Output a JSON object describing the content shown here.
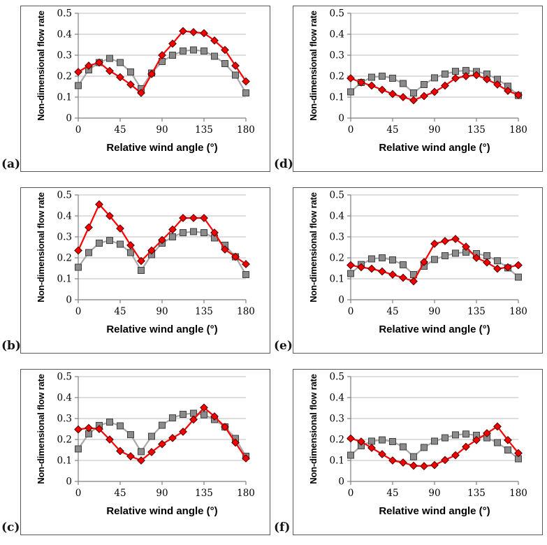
{
  "figure": {
    "x_axis_label": "Relative wind angle (°)",
    "y_axis_label": "Non-dimensional flow rate",
    "x_tick_labels": [
      "0",
      "45",
      "90",
      "135",
      "180"
    ],
    "y_tick_labels": [
      "0",
      "0.1",
      "0.2",
      "0.3",
      "0.4",
      "0.5"
    ]
  },
  "style": {
    "grid_color": "#BDBDBD",
    "axis_color": "#7F7F7F",
    "box_border_color": "#595959",
    "series": {
      "gray-square": {
        "line": "#A8A8A8",
        "fill": "#8B8B8B",
        "stroke": "#3F3F3F",
        "marker": "square"
      },
      "red-diamond": {
        "line": "#FF0000",
        "fill": "#F40000",
        "stroke": "#4D0000",
        "marker": "diamond"
      }
    }
  },
  "chart_data": [
    {
      "panel_label": "(a)",
      "type": "line",
      "title": "",
      "xlabel": "Relative wind angle (°)",
      "ylabel": "Non-dimensional flow rate",
      "xlim": [
        0,
        180
      ],
      "ylim": [
        0,
        0.5
      ],
      "x_ticks": [
        0,
        45,
        90,
        135,
        180
      ],
      "y_ticks": [
        0,
        0.1,
        0.2,
        0.3,
        0.4,
        0.5
      ],
      "x_tick_labels": [
        "0",
        "45",
        "90",
        "135",
        "180"
      ],
      "y_tick_labels": [
        "0",
        "0.1",
        "0.2",
        "0.3",
        "0.4",
        "0.5"
      ],
      "grid": "horizontal",
      "legend": "none",
      "x": [
        0,
        11.25,
        22.5,
        33.75,
        45,
        56.25,
        67.5,
        78.75,
        90,
        101.25,
        112.5,
        123.75,
        135,
        146.25,
        157.5,
        168.75,
        180
      ],
      "series": [
        {
          "name": "gray-square",
          "values": [
            0.155,
            0.23,
            0.265,
            0.285,
            0.265,
            0.22,
            0.14,
            0.215,
            0.27,
            0.3,
            0.32,
            0.325,
            0.32,
            0.295,
            0.26,
            0.205,
            0.12
          ]
        },
        {
          "name": "red-diamond",
          "values": [
            0.22,
            0.25,
            0.265,
            0.225,
            0.195,
            0.16,
            0.12,
            0.21,
            0.3,
            0.355,
            0.415,
            0.41,
            0.405,
            0.37,
            0.325,
            0.25,
            0.175
          ]
        }
      ]
    },
    {
      "panel_label": "(b)",
      "type": "line",
      "title": "",
      "xlabel": "Relative wind angle (°)",
      "ylabel": "Non-dimensional flow rate",
      "xlim": [
        0,
        180
      ],
      "ylim": [
        0,
        0.5
      ],
      "x_ticks": [
        0,
        45,
        90,
        135,
        180
      ],
      "y_ticks": [
        0,
        0.1,
        0.2,
        0.3,
        0.4,
        0.5
      ],
      "x_tick_labels": [
        "0",
        "45",
        "90",
        "135",
        "180"
      ],
      "y_tick_labels": [
        "0",
        "0.1",
        "0.2",
        "0.3",
        "0.4",
        "0.5"
      ],
      "grid": "horizontal",
      "legend": "none",
      "x": [
        0,
        11.25,
        22.5,
        33.75,
        45,
        56.25,
        67.5,
        78.75,
        90,
        101.25,
        112.5,
        123.75,
        135,
        146.25,
        157.5,
        168.75,
        180
      ],
      "series": [
        {
          "name": "gray-square",
          "values": [
            0.155,
            0.225,
            0.27,
            0.283,
            0.265,
            0.225,
            0.14,
            0.215,
            0.27,
            0.3,
            0.32,
            0.325,
            0.32,
            0.295,
            0.26,
            0.205,
            0.12
          ]
        },
        {
          "name": "red-diamond",
          "values": [
            0.235,
            0.345,
            0.455,
            0.4,
            0.34,
            0.26,
            0.185,
            0.235,
            0.285,
            0.335,
            0.39,
            0.39,
            0.39,
            0.32,
            0.24,
            0.205,
            0.17
          ]
        }
      ]
    },
    {
      "panel_label": "(c)",
      "type": "line",
      "title": "",
      "xlabel": "Relative wind angle (°)",
      "ylabel": "Non-dimensional flow rate",
      "xlim": [
        0,
        180
      ],
      "ylim": [
        0,
        0.5
      ],
      "x_ticks": [
        0,
        45,
        90,
        135,
        180
      ],
      "y_ticks": [
        0,
        0.1,
        0.2,
        0.3,
        0.4,
        0.5
      ],
      "x_tick_labels": [
        "0",
        "45",
        "90",
        "135",
        "180"
      ],
      "y_tick_labels": [
        "0",
        "0.1",
        "0.2",
        "0.3",
        "0.4",
        "0.5"
      ],
      "grid": "horizontal",
      "legend": "none",
      "x": [
        0,
        11.25,
        22.5,
        33.75,
        45,
        56.25,
        67.5,
        78.75,
        90,
        101.25,
        112.5,
        123.75,
        135,
        146.25,
        157.5,
        168.75,
        180
      ],
      "series": [
        {
          "name": "gray-square",
          "values": [
            0.155,
            0.227,
            0.267,
            0.283,
            0.265,
            0.223,
            0.142,
            0.215,
            0.268,
            0.303,
            0.32,
            0.325,
            0.318,
            0.295,
            0.26,
            0.205,
            0.12
          ]
        },
        {
          "name": "red-diamond",
          "values": [
            0.248,
            0.255,
            0.25,
            0.2,
            0.145,
            0.12,
            0.1,
            0.14,
            0.178,
            0.207,
            0.237,
            0.295,
            0.352,
            0.31,
            0.26,
            0.185,
            0.11
          ]
        }
      ]
    },
    {
      "panel_label": "(d)",
      "type": "line",
      "title": "",
      "xlabel": "Relative wind angle (°)",
      "ylabel": "Non-dimensional flow rate",
      "xlim": [
        0,
        180
      ],
      "ylim": [
        0,
        0.5
      ],
      "x_ticks": [
        0,
        45,
        90,
        135,
        180
      ],
      "y_ticks": [
        0,
        0.1,
        0.2,
        0.3,
        0.4,
        0.5
      ],
      "x_tick_labels": [
        "0",
        "45",
        "90",
        "135",
        "180"
      ],
      "y_tick_labels": [
        "0",
        "0.1",
        "0.2",
        "0.3",
        "0.4",
        "0.5"
      ],
      "grid": "horizontal",
      "legend": "none",
      "x": [
        0,
        11.25,
        22.5,
        33.75,
        45,
        56.25,
        67.5,
        78.75,
        90,
        101.25,
        112.5,
        123.75,
        135,
        146.25,
        157.5,
        168.75,
        180
      ],
      "series": [
        {
          "name": "gray-square",
          "values": [
            0.125,
            0.17,
            0.195,
            0.2,
            0.19,
            0.165,
            0.12,
            0.16,
            0.192,
            0.21,
            0.223,
            0.227,
            0.222,
            0.21,
            0.185,
            0.152,
            0.108
          ]
        },
        {
          "name": "red-diamond",
          "values": [
            0.19,
            0.17,
            0.155,
            0.135,
            0.115,
            0.1,
            0.085,
            0.105,
            0.125,
            0.155,
            0.19,
            0.2,
            0.205,
            0.185,
            0.16,
            0.13,
            0.11
          ]
        }
      ]
    },
    {
      "panel_label": "(e)",
      "type": "line",
      "title": "",
      "xlabel": "Relative wind angle (°)",
      "ylabel": "Non-dimensional flow rate",
      "xlim": [
        0,
        180
      ],
      "ylim": [
        0,
        0.5
      ],
      "x_ticks": [
        0,
        45,
        90,
        135,
        180
      ],
      "y_ticks": [
        0,
        0.1,
        0.2,
        0.3,
        0.4,
        0.5
      ],
      "x_tick_labels": [
        "0",
        "45",
        "90",
        "135",
        "180"
      ],
      "y_tick_labels": [
        "0",
        "0.1",
        "0.2",
        "0.3",
        "0.4",
        "0.5"
      ],
      "grid": "horizontal",
      "legend": "none",
      "x": [
        0,
        11.25,
        22.5,
        33.75,
        45,
        56.25,
        67.5,
        78.75,
        90,
        101.25,
        112.5,
        123.75,
        135,
        146.25,
        157.5,
        168.75,
        180
      ],
      "series": [
        {
          "name": "gray-square",
          "values": [
            0.125,
            0.168,
            0.195,
            0.2,
            0.19,
            0.167,
            0.12,
            0.16,
            0.192,
            0.21,
            0.222,
            0.227,
            0.22,
            0.21,
            0.186,
            0.152,
            0.108
          ]
        },
        {
          "name": "red-diamond",
          "values": [
            0.165,
            0.155,
            0.148,
            0.135,
            0.12,
            0.105,
            0.088,
            0.18,
            0.267,
            0.28,
            0.29,
            0.253,
            0.2,
            0.178,
            0.148,
            0.155,
            0.165
          ]
        }
      ]
    },
    {
      "panel_label": "(f)",
      "type": "line",
      "title": "",
      "xlabel": "Relative wind angle (°)",
      "ylabel": "Non-dimensional flow rate",
      "xlim": [
        0,
        180
      ],
      "ylim": [
        0,
        0.5
      ],
      "x_ticks": [
        0,
        45,
        90,
        135,
        180
      ],
      "y_ticks": [
        0,
        0.1,
        0.2,
        0.3,
        0.4,
        0.5
      ],
      "x_tick_labels": [
        "0",
        "45",
        "90",
        "135",
        "180"
      ],
      "y_tick_labels": [
        "0",
        "0.1",
        "0.2",
        "0.3",
        "0.4",
        "0.5"
      ],
      "grid": "horizontal",
      "legend": "none",
      "x": [
        0,
        11.25,
        22.5,
        33.75,
        45,
        56.25,
        67.5,
        78.75,
        90,
        101.25,
        112.5,
        123.75,
        135,
        146.25,
        157.5,
        168.75,
        180
      ],
      "series": [
        {
          "name": "gray-square",
          "values": [
            0.125,
            0.17,
            0.192,
            0.198,
            0.19,
            0.165,
            0.118,
            0.162,
            0.192,
            0.208,
            0.222,
            0.226,
            0.22,
            0.208,
            0.185,
            0.15,
            0.108
          ]
        },
        {
          "name": "red-diamond",
          "values": [
            0.205,
            0.19,
            0.16,
            0.13,
            0.1,
            0.09,
            0.075,
            0.073,
            0.078,
            0.102,
            0.125,
            0.165,
            0.197,
            0.23,
            0.262,
            0.197,
            0.135
          ]
        }
      ]
    }
  ]
}
